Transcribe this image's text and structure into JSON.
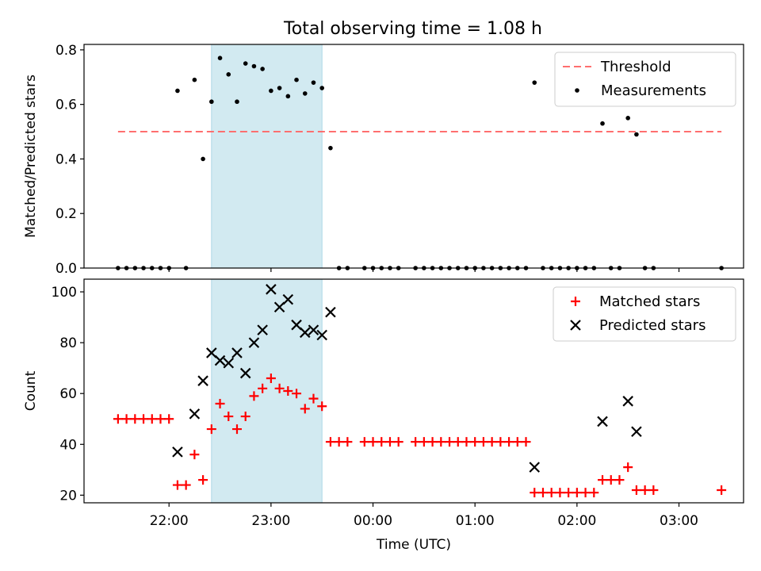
{
  "figure": {
    "title": "Total observing time = 1.08 h",
    "highlight_color": "#add8e6",
    "marker_color_matched": "#ff0000",
    "marker_color_predicted": "#000000",
    "threshold_color": "#ff6f6f"
  },
  "chart_data": [
    {
      "type": "scatter",
      "ylabel": "Matched/Predicted stars",
      "xlabel": "",
      "ylim": [
        0,
        0.82
      ],
      "yticks": [
        0.0,
        0.2,
        0.4,
        0.6,
        0.8
      ],
      "ytick_labels": [
        "0.0",
        "0.2",
        "0.4",
        "0.6",
        "0.8"
      ],
      "xlim": [
        "21:10",
        "03:38"
      ],
      "xticks": [
        "22:00",
        "23:00",
        "00:00",
        "01:00",
        "02:00",
        "03:00"
      ],
      "highlight_span": [
        "22:25",
        "23:30"
      ],
      "threshold": {
        "name": "Threshold",
        "value": 0.5,
        "x_start": "21:30",
        "x_end": "03:25"
      },
      "legend": {
        "placement": "top-right",
        "entries": [
          "Threshold",
          "Measurements"
        ]
      },
      "series": [
        {
          "name": "Measurements",
          "points": [
            [
              "21:30",
              0
            ],
            [
              "21:35",
              0
            ],
            [
              "21:40",
              0
            ],
            [
              "21:45",
              0
            ],
            [
              "21:50",
              0
            ],
            [
              "21:55",
              0
            ],
            [
              "22:00",
              0
            ],
            [
              "22:05",
              0.65
            ],
            [
              "22:10",
              0
            ],
            [
              "22:15",
              0.69
            ],
            [
              "22:20",
              0.4
            ],
            [
              "22:25",
              0.61
            ],
            [
              "22:30",
              0.77
            ],
            [
              "22:35",
              0.71
            ],
            [
              "22:40",
              0.61
            ],
            [
              "22:45",
              0.75
            ],
            [
              "22:50",
              0.74
            ],
            [
              "22:55",
              0.73
            ],
            [
              "23:00",
              0.65
            ],
            [
              "23:05",
              0.66
            ],
            [
              "23:10",
              0.63
            ],
            [
              "23:15",
              0.69
            ],
            [
              "23:20",
              0.64
            ],
            [
              "23:25",
              0.68
            ],
            [
              "23:30",
              0.66
            ],
            [
              "23:35",
              0.44
            ],
            [
              "23:40",
              0
            ],
            [
              "23:45",
              0
            ],
            [
              "23:55",
              0
            ],
            [
              "00:00",
              0
            ],
            [
              "00:05",
              0
            ],
            [
              "00:10",
              0
            ],
            [
              "00:15",
              0
            ],
            [
              "00:25",
              0
            ],
            [
              "00:30",
              0
            ],
            [
              "00:35",
              0
            ],
            [
              "00:40",
              0
            ],
            [
              "00:45",
              0
            ],
            [
              "00:50",
              0
            ],
            [
              "00:55",
              0
            ],
            [
              "01:00",
              0
            ],
            [
              "01:05",
              0
            ],
            [
              "01:10",
              0
            ],
            [
              "01:15",
              0
            ],
            [
              "01:20",
              0
            ],
            [
              "01:25",
              0
            ],
            [
              "01:30",
              0
            ],
            [
              "01:35",
              0.68
            ],
            [
              "01:40",
              0
            ],
            [
              "01:45",
              0
            ],
            [
              "01:50",
              0
            ],
            [
              "01:55",
              0
            ],
            [
              "02:00",
              0
            ],
            [
              "02:05",
              0
            ],
            [
              "02:10",
              0
            ],
            [
              "02:15",
              0.53
            ],
            [
              "02:20",
              0
            ],
            [
              "02:25",
              0
            ],
            [
              "02:30",
              0.55
            ],
            [
              "02:35",
              0.49
            ],
            [
              "02:40",
              0
            ],
            [
              "02:45",
              0
            ],
            [
              "03:25",
              0
            ]
          ]
        }
      ]
    },
    {
      "type": "scatter",
      "ylabel": "Count",
      "xlabel": "Time (UTC)",
      "ylim": [
        17,
        105
      ],
      "yticks": [
        20,
        40,
        60,
        80,
        100
      ],
      "ytick_labels": [
        "20",
        "40",
        "60",
        "80",
        "100"
      ],
      "xlim": [
        "21:10",
        "03:38"
      ],
      "xticks": [
        "22:00",
        "23:00",
        "00:00",
        "01:00",
        "02:00",
        "03:00"
      ],
      "xtick_labels": [
        "22:00",
        "23:00",
        "00:00",
        "01:00",
        "02:00",
        "03:00"
      ],
      "highlight_span": [
        "22:25",
        "23:30"
      ],
      "legend": {
        "placement": "top-right",
        "entries": [
          "Matched stars",
          "Predicted stars"
        ]
      },
      "series": [
        {
          "name": "Matched stars",
          "marker": "plus",
          "points": [
            [
              "21:30",
              50
            ],
            [
              "21:35",
              50
            ],
            [
              "21:40",
              50
            ],
            [
              "21:45",
              50
            ],
            [
              "21:50",
              50
            ],
            [
              "21:55",
              50
            ],
            [
              "22:00",
              50
            ],
            [
              "22:05",
              24
            ],
            [
              "22:10",
              24
            ],
            [
              "22:15",
              36
            ],
            [
              "22:20",
              26
            ],
            [
              "22:25",
              46
            ],
            [
              "22:30",
              56
            ],
            [
              "22:35",
              51
            ],
            [
              "22:40",
              46
            ],
            [
              "22:45",
              51
            ],
            [
              "22:50",
              59
            ],
            [
              "22:55",
              62
            ],
            [
              "23:00",
              66
            ],
            [
              "23:05",
              62
            ],
            [
              "23:10",
              61
            ],
            [
              "23:15",
              60
            ],
            [
              "23:20",
              54
            ],
            [
              "23:25",
              58
            ],
            [
              "23:30",
              55
            ],
            [
              "23:35",
              41
            ],
            [
              "23:40",
              41
            ],
            [
              "23:45",
              41
            ],
            [
              "23:55",
              41
            ],
            [
              "00:00",
              41
            ],
            [
              "00:05",
              41
            ],
            [
              "00:10",
              41
            ],
            [
              "00:15",
              41
            ],
            [
              "00:25",
              41
            ],
            [
              "00:30",
              41
            ],
            [
              "00:35",
              41
            ],
            [
              "00:40",
              41
            ],
            [
              "00:45",
              41
            ],
            [
              "00:50",
              41
            ],
            [
              "00:55",
              41
            ],
            [
              "01:00",
              41
            ],
            [
              "01:05",
              41
            ],
            [
              "01:10",
              41
            ],
            [
              "01:15",
              41
            ],
            [
              "01:20",
              41
            ],
            [
              "01:25",
              41
            ],
            [
              "01:30",
              41
            ],
            [
              "01:35",
              21
            ],
            [
              "01:40",
              21
            ],
            [
              "01:45",
              21
            ],
            [
              "01:50",
              21
            ],
            [
              "01:55",
              21
            ],
            [
              "02:00",
              21
            ],
            [
              "02:05",
              21
            ],
            [
              "02:10",
              21
            ],
            [
              "02:15",
              26
            ],
            [
              "02:20",
              26
            ],
            [
              "02:25",
              26
            ],
            [
              "02:30",
              31
            ],
            [
              "02:35",
              22
            ],
            [
              "02:40",
              22
            ],
            [
              "02:45",
              22
            ],
            [
              "03:25",
              22
            ]
          ]
        },
        {
          "name": "Predicted stars",
          "marker": "x",
          "points": [
            [
              "22:05",
              37
            ],
            [
              "22:15",
              52
            ],
            [
              "22:20",
              65
            ],
            [
              "22:25",
              76
            ],
            [
              "22:30",
              73
            ],
            [
              "22:35",
              72
            ],
            [
              "22:40",
              76
            ],
            [
              "22:45",
              68
            ],
            [
              "22:50",
              80
            ],
            [
              "22:55",
              85
            ],
            [
              "23:00",
              101
            ],
            [
              "23:05",
              94
            ],
            [
              "23:10",
              97
            ],
            [
              "23:15",
              87
            ],
            [
              "23:20",
              84
            ],
            [
              "23:25",
              85
            ],
            [
              "23:30",
              83
            ],
            [
              "23:35",
              92
            ],
            [
              "01:35",
              31
            ],
            [
              "02:15",
              49
            ],
            [
              "02:30",
              57
            ],
            [
              "02:35",
              45
            ]
          ]
        }
      ]
    }
  ]
}
